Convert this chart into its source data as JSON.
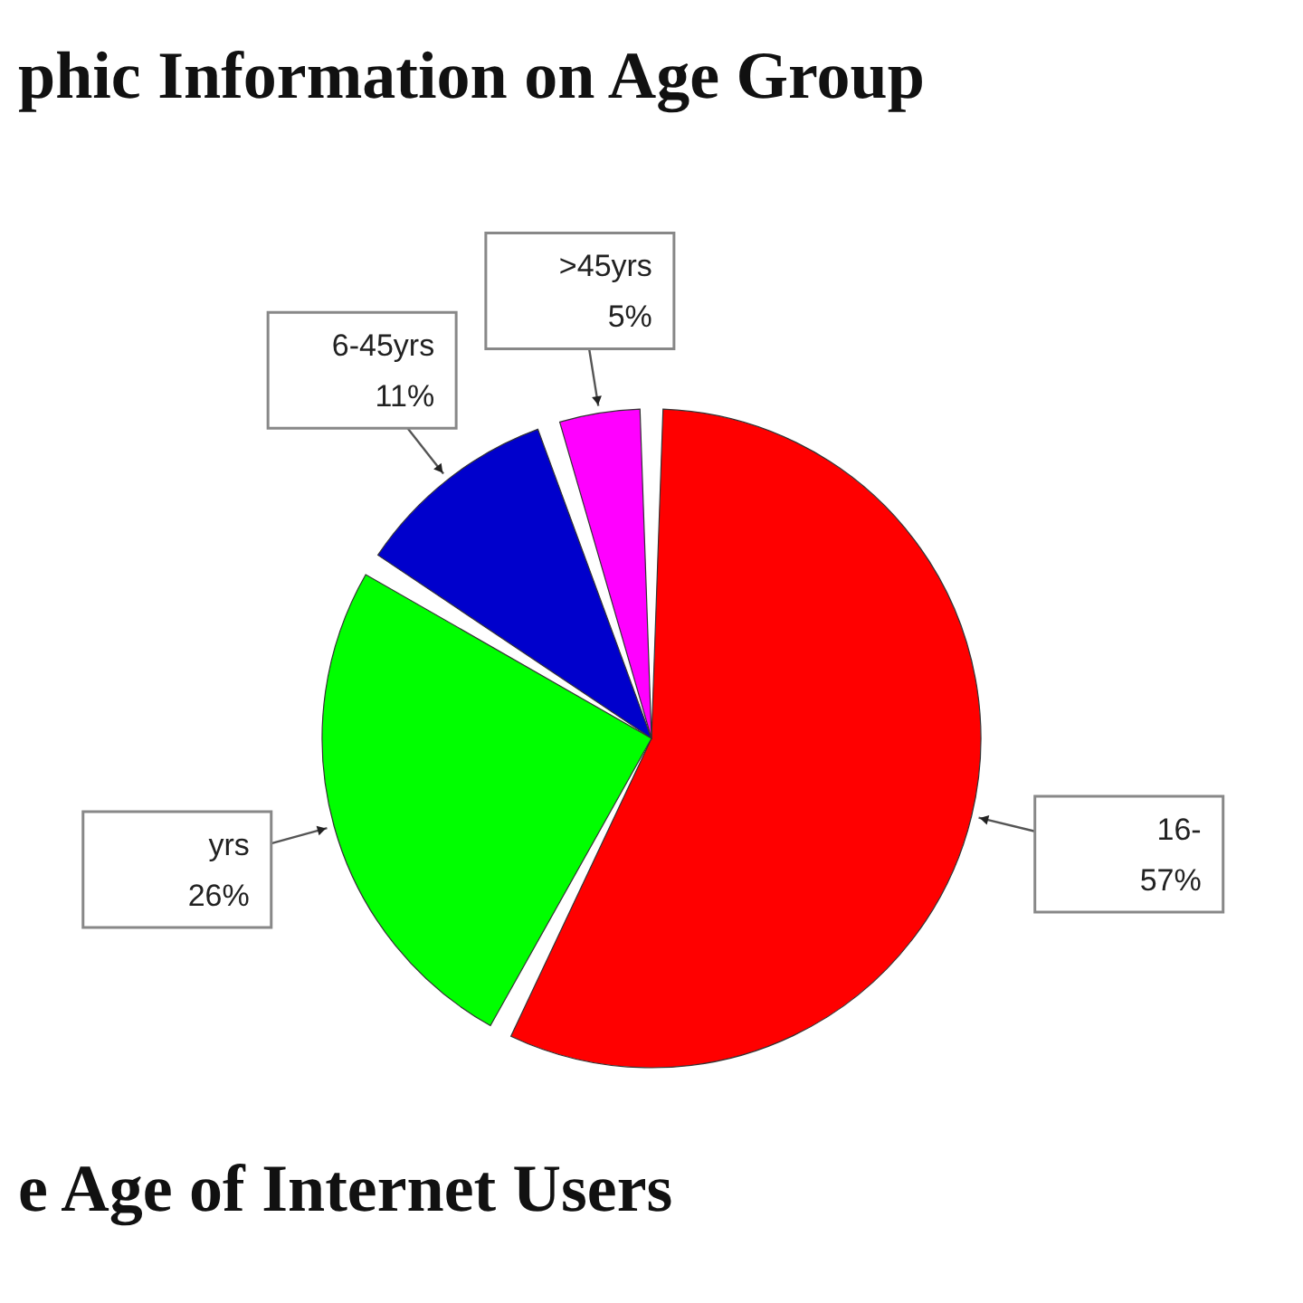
{
  "chart_data": {
    "type": "pie",
    "title": "phic Information on Age Group",
    "categories": [
      "16-",
      "yrs",
      "6-45yrs",
      ">45yrs"
    ],
    "values": [
      57,
      26,
      11,
      5
    ],
    "colors": [
      "#ff0000",
      "#00ff00",
      "#0000cc",
      "#ff00ff"
    ],
    "value_labels": [
      "57%",
      "26%",
      "11%",
      "5%"
    ],
    "annotations": [
      "e Age of Internet Users"
    ]
  }
}
